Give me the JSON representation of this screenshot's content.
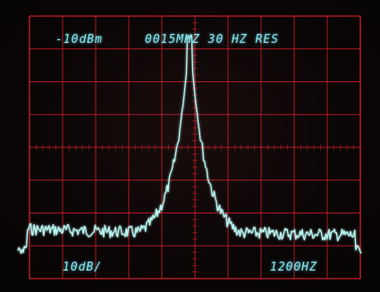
{
  "display": {
    "ref_level": "-10dBm",
    "center_freq": "0015MHZ 30 HZ RES",
    "scale": "10dB/",
    "span": "1200HZ"
  },
  "colors": {
    "grid": "#c81e2a",
    "trace": "#b9f3f0",
    "readout": "#8fe3ea",
    "background": "#0b0606"
  }
}
